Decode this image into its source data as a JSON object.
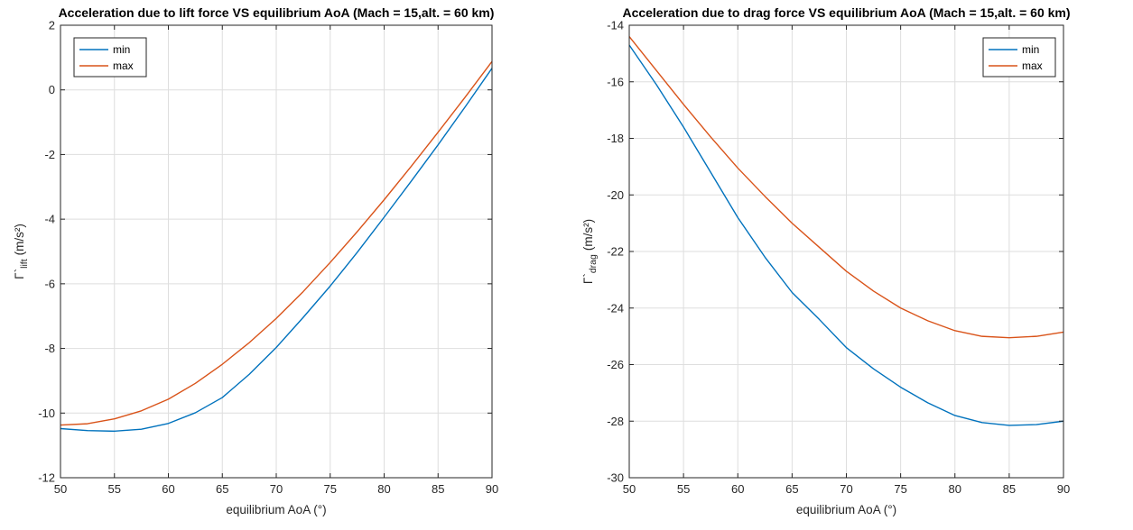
{
  "chart_data": [
    {
      "type": "line",
      "title": "Acceleration due to lift force VS equilibrium AoA (Mach = 15,alt. = 60 km)",
      "xlabel": "equilibrium AoA (°)",
      "ylabel": {
        "symbol": "Γ`",
        "subscript": "lift",
        "unit": "(m/s²)"
      },
      "xlim": [
        50,
        90
      ],
      "ylim": [
        -12,
        2
      ],
      "xticks": [
        50,
        55,
        60,
        65,
        70,
        75,
        80,
        85,
        90
      ],
      "yticks": [
        -12,
        -10,
        -8,
        -6,
        -4,
        -2,
        0,
        2
      ],
      "grid": true,
      "legend_location": "top-left",
      "x": [
        50,
        52.5,
        55,
        57.5,
        60,
        62.5,
        65,
        67.5,
        70,
        72.5,
        75,
        77.5,
        80,
        82.5,
        85,
        87.5,
        90
      ],
      "series": [
        {
          "name": "min",
          "color": "#0072BD",
          "values": [
            -10.48,
            -10.54,
            -10.56,
            -10.5,
            -10.32,
            -9.99,
            -9.52,
            -8.8,
            -7.97,
            -7.04,
            -6.07,
            -5.03,
            -3.94,
            -2.83,
            -1.7,
            -0.53,
            0.67
          ]
        },
        {
          "name": "max",
          "color": "#D95319",
          "values": [
            -10.37,
            -10.33,
            -10.18,
            -9.93,
            -9.57,
            -9.08,
            -8.49,
            -7.82,
            -7.07,
            -6.24,
            -5.34,
            -4.39,
            -3.4,
            -2.37,
            -1.31,
            -0.23,
            0.88
          ]
        }
      ]
    },
    {
      "type": "line",
      "title": "Acceleration due to drag force VS equilibrium AoA (Mach = 15,alt. = 60 km)",
      "xlabel": "equilibrium AoA (°)",
      "ylabel": {
        "symbol": "Γ`",
        "subscript": "drag",
        "unit": "(m/s²)"
      },
      "xlim": [
        50,
        90
      ],
      "ylim": [
        -30,
        -14
      ],
      "xticks": [
        50,
        55,
        60,
        65,
        70,
        75,
        80,
        85,
        90
      ],
      "yticks": [
        -30,
        -28,
        -26,
        -24,
        -22,
        -20,
        -18,
        -16,
        -14
      ],
      "grid": true,
      "legend_location": "top-right",
      "x": [
        50,
        52.5,
        55,
        57.5,
        60,
        62.5,
        65,
        67.5,
        70,
        72.5,
        75,
        77.5,
        80,
        82.5,
        85,
        87.5,
        90
      ],
      "series": [
        {
          "name": "min",
          "color": "#0072BD",
          "values": [
            -14.7,
            -16.1,
            -17.6,
            -19.2,
            -20.8,
            -22.2,
            -23.45,
            -24.4,
            -25.4,
            -26.15,
            -26.8,
            -27.35,
            -27.8,
            -28.05,
            -28.15,
            -28.12,
            -28.0
          ]
        },
        {
          "name": "max",
          "color": "#D95319",
          "values": [
            -14.4,
            -15.6,
            -16.8,
            -17.95,
            -19.05,
            -20.05,
            -21.0,
            -21.85,
            -22.7,
            -23.4,
            -24.0,
            -24.45,
            -24.8,
            -25.0,
            -25.05,
            -25.0,
            -24.85
          ]
        }
      ]
    }
  ]
}
